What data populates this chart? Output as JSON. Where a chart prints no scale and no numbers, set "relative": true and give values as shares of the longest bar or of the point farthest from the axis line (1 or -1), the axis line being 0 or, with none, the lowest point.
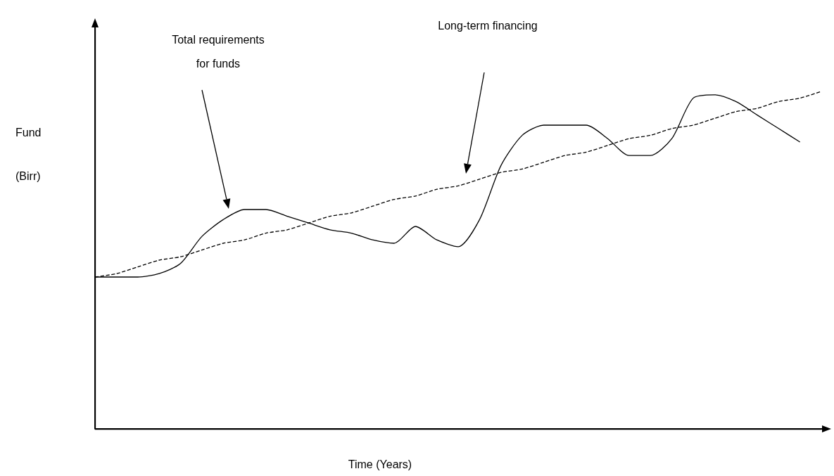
{
  "chart_data": {
    "type": "line",
    "relative": true,
    "xlabel": "Time (Years)",
    "ylabel": "Fund (Birr)",
    "marker": "none",
    "categories": [
      null,
      null,
      null,
      null,
      null,
      null,
      null,
      null,
      null,
      null,
      null,
      null,
      null,
      null,
      null,
      null,
      null,
      null,
      null,
      null,
      null,
      null,
      null,
      null,
      null,
      null,
      null,
      null,
      null,
      null,
      null,
      null,
      null,
      null,
      null
    ],
    "series": [
      {
        "color": "#000000",
        "line_style": "solid",
        "values": [
          0.45,
          0.45,
          0.45,
          0.46,
          0.49,
          0.57,
          0.62,
          0.65,
          0.65,
          0.63,
          0.61,
          0.59,
          0.58,
          0.56,
          0.55,
          0.6,
          0.56,
          0.54,
          0.62,
          0.78,
          0.87,
          0.9,
          0.9,
          0.9,
          0.86,
          0.81,
          0.81,
          0.86,
          0.98,
          0.99,
          0.97,
          0.93,
          0.89,
          0.85,
          null
        ]
      },
      {
        "color": "#000000",
        "line_style": "dashed",
        "values": [
          0.45,
          0.46,
          0.48,
          0.5,
          0.51,
          0.53,
          0.55,
          0.56,
          0.58,
          0.59,
          0.61,
          0.63,
          0.64,
          0.66,
          0.68,
          0.69,
          0.71,
          0.72,
          0.74,
          0.76,
          0.77,
          0.79,
          0.81,
          0.82,
          0.84,
          0.86,
          0.87,
          0.89,
          0.9,
          0.92,
          0.94,
          0.95,
          0.97,
          0.98,
          1.0
        ]
      }
    ],
    "annotations": [
      "Total requirements for funds",
      "Long-term financing"
    ]
  }
}
